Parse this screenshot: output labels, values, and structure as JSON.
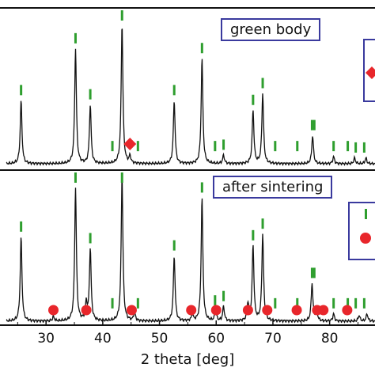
{
  "chart_data": {
    "type": "line",
    "xlabel": "2 theta [deg]",
    "xlim": [
      23,
      88
    ],
    "x_ticks": [
      30,
      40,
      50,
      60,
      70,
      80
    ],
    "panels": [
      {
        "label": "green body",
        "peaks": [
          {
            "x": 25.6,
            "h": 0.45
          },
          {
            "x": 35.2,
            "h": 0.82
          },
          {
            "x": 37.8,
            "h": 0.42
          },
          {
            "x": 43.4,
            "h": 1.0
          },
          {
            "x": 44.8,
            "h": 0.05
          },
          {
            "x": 52.6,
            "h": 0.45
          },
          {
            "x": 57.5,
            "h": 0.75
          },
          {
            "x": 61.3,
            "h": 0.06
          },
          {
            "x": 66.5,
            "h": 0.38
          },
          {
            "x": 68.2,
            "h": 0.5
          },
          {
            "x": 77.0,
            "h": 0.2
          },
          {
            "x": 80.7,
            "h": 0.05
          },
          {
            "x": 84.4,
            "h": 0.04
          },
          {
            "x": 86.4,
            "h": 0.04
          }
        ],
        "green_markers": [
          25.6,
          35.2,
          37.8,
          41.7,
          43.4,
          46.2,
          52.6,
          57.5,
          59.8,
          61.3,
          66.5,
          68.2,
          70.4,
          74.3,
          76.9,
          77.3,
          80.7,
          83.2,
          84.6,
          86.1
        ],
        "diamond_markers": [
          44.8
        ]
      },
      {
        "label": "after sintering",
        "peaks": [
          {
            "x": 25.6,
            "h": 0.58
          },
          {
            "x": 31.3,
            "h": 0.03
          },
          {
            "x": 35.2,
            "h": 0.92
          },
          {
            "x": 37.1,
            "h": 0.12
          },
          {
            "x": 37.8,
            "h": 0.5
          },
          {
            "x": 43.4,
            "h": 1.0
          },
          {
            "x": 45.6,
            "h": 0.06
          },
          {
            "x": 52.6,
            "h": 0.45
          },
          {
            "x": 55.8,
            "h": 0.04
          },
          {
            "x": 57.5,
            "h": 0.85
          },
          {
            "x": 59.9,
            "h": 0.07
          },
          {
            "x": 61.3,
            "h": 0.1
          },
          {
            "x": 65.6,
            "h": 0.12
          },
          {
            "x": 66.5,
            "h": 0.52
          },
          {
            "x": 68.2,
            "h": 0.6
          },
          {
            "x": 76.9,
            "h": 0.26
          },
          {
            "x": 77.7,
            "h": 0.08
          },
          {
            "x": 80.7,
            "h": 0.05
          },
          {
            "x": 85.2,
            "h": 0.04
          },
          {
            "x": 86.6,
            "h": 0.05
          }
        ],
        "green_markers": [
          25.6,
          35.2,
          37.8,
          41.7,
          43.4,
          46.2,
          52.6,
          57.5,
          59.8,
          61.3,
          66.5,
          68.2,
          70.4,
          74.3,
          76.9,
          77.3,
          80.7,
          83.2,
          84.6,
          86.1
        ],
        "circle_markers": [
          31.3,
          37.1,
          45.1,
          55.6,
          60.0,
          65.6,
          69.0,
          74.2,
          77.8,
          78.9,
          83.1
        ]
      }
    ],
    "colors": {
      "line": "#111111",
      "green_marker": "#2e9e2e",
      "diamond": "#e8262b",
      "circle": "#e8262b",
      "label_border": "#3a3a9e"
    }
  }
}
